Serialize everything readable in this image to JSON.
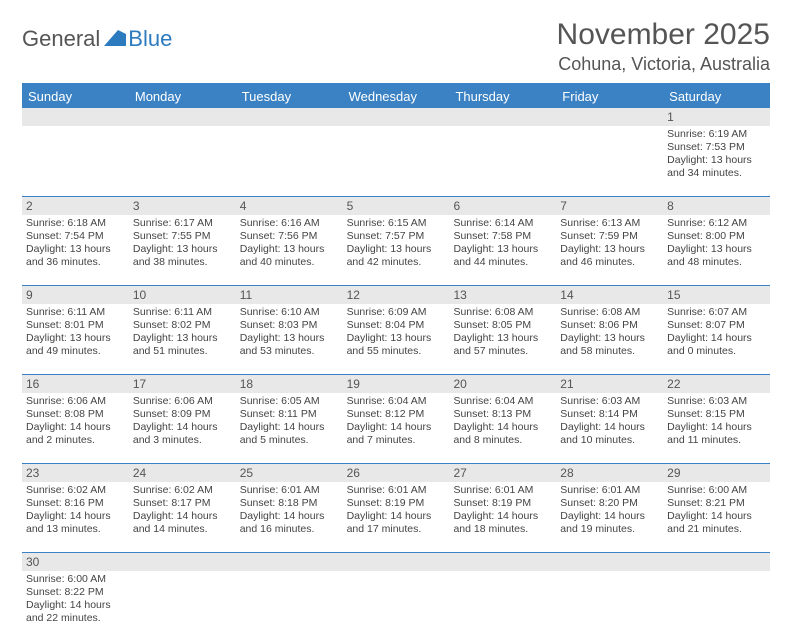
{
  "logo": {
    "text1": "General",
    "text2": "Blue"
  },
  "title": "November 2025",
  "location": "Cohuna, Victoria, Australia",
  "colors": {
    "header_bg": "#3a82c4",
    "daynum_bg": "#e8e8e8",
    "text": "#444444"
  },
  "dayNames": [
    "Sunday",
    "Monday",
    "Tuesday",
    "Wednesday",
    "Thursday",
    "Friday",
    "Saturday"
  ],
  "weeks": [
    [
      null,
      null,
      null,
      null,
      null,
      null,
      {
        "n": "1",
        "sr": "Sunrise: 6:19 AM",
        "ss": "Sunset: 7:53 PM",
        "dl": "Daylight: 13 hours and 34 minutes."
      }
    ],
    [
      {
        "n": "2",
        "sr": "Sunrise: 6:18 AM",
        "ss": "Sunset: 7:54 PM",
        "dl": "Daylight: 13 hours and 36 minutes."
      },
      {
        "n": "3",
        "sr": "Sunrise: 6:17 AM",
        "ss": "Sunset: 7:55 PM",
        "dl": "Daylight: 13 hours and 38 minutes."
      },
      {
        "n": "4",
        "sr": "Sunrise: 6:16 AM",
        "ss": "Sunset: 7:56 PM",
        "dl": "Daylight: 13 hours and 40 minutes."
      },
      {
        "n": "5",
        "sr": "Sunrise: 6:15 AM",
        "ss": "Sunset: 7:57 PM",
        "dl": "Daylight: 13 hours and 42 minutes."
      },
      {
        "n": "6",
        "sr": "Sunrise: 6:14 AM",
        "ss": "Sunset: 7:58 PM",
        "dl": "Daylight: 13 hours and 44 minutes."
      },
      {
        "n": "7",
        "sr": "Sunrise: 6:13 AM",
        "ss": "Sunset: 7:59 PM",
        "dl": "Daylight: 13 hours and 46 minutes."
      },
      {
        "n": "8",
        "sr": "Sunrise: 6:12 AM",
        "ss": "Sunset: 8:00 PM",
        "dl": "Daylight: 13 hours and 48 minutes."
      }
    ],
    [
      {
        "n": "9",
        "sr": "Sunrise: 6:11 AM",
        "ss": "Sunset: 8:01 PM",
        "dl": "Daylight: 13 hours and 49 minutes."
      },
      {
        "n": "10",
        "sr": "Sunrise: 6:11 AM",
        "ss": "Sunset: 8:02 PM",
        "dl": "Daylight: 13 hours and 51 minutes."
      },
      {
        "n": "11",
        "sr": "Sunrise: 6:10 AM",
        "ss": "Sunset: 8:03 PM",
        "dl": "Daylight: 13 hours and 53 minutes."
      },
      {
        "n": "12",
        "sr": "Sunrise: 6:09 AM",
        "ss": "Sunset: 8:04 PM",
        "dl": "Daylight: 13 hours and 55 minutes."
      },
      {
        "n": "13",
        "sr": "Sunrise: 6:08 AM",
        "ss": "Sunset: 8:05 PM",
        "dl": "Daylight: 13 hours and 57 minutes."
      },
      {
        "n": "14",
        "sr": "Sunrise: 6:08 AM",
        "ss": "Sunset: 8:06 PM",
        "dl": "Daylight: 13 hours and 58 minutes."
      },
      {
        "n": "15",
        "sr": "Sunrise: 6:07 AM",
        "ss": "Sunset: 8:07 PM",
        "dl": "Daylight: 14 hours and 0 minutes."
      }
    ],
    [
      {
        "n": "16",
        "sr": "Sunrise: 6:06 AM",
        "ss": "Sunset: 8:08 PM",
        "dl": "Daylight: 14 hours and 2 minutes."
      },
      {
        "n": "17",
        "sr": "Sunrise: 6:06 AM",
        "ss": "Sunset: 8:09 PM",
        "dl": "Daylight: 14 hours and 3 minutes."
      },
      {
        "n": "18",
        "sr": "Sunrise: 6:05 AM",
        "ss": "Sunset: 8:11 PM",
        "dl": "Daylight: 14 hours and 5 minutes."
      },
      {
        "n": "19",
        "sr": "Sunrise: 6:04 AM",
        "ss": "Sunset: 8:12 PM",
        "dl": "Daylight: 14 hours and 7 minutes."
      },
      {
        "n": "20",
        "sr": "Sunrise: 6:04 AM",
        "ss": "Sunset: 8:13 PM",
        "dl": "Daylight: 14 hours and 8 minutes."
      },
      {
        "n": "21",
        "sr": "Sunrise: 6:03 AM",
        "ss": "Sunset: 8:14 PM",
        "dl": "Daylight: 14 hours and 10 minutes."
      },
      {
        "n": "22",
        "sr": "Sunrise: 6:03 AM",
        "ss": "Sunset: 8:15 PM",
        "dl": "Daylight: 14 hours and 11 minutes."
      }
    ],
    [
      {
        "n": "23",
        "sr": "Sunrise: 6:02 AM",
        "ss": "Sunset: 8:16 PM",
        "dl": "Daylight: 14 hours and 13 minutes."
      },
      {
        "n": "24",
        "sr": "Sunrise: 6:02 AM",
        "ss": "Sunset: 8:17 PM",
        "dl": "Daylight: 14 hours and 14 minutes."
      },
      {
        "n": "25",
        "sr": "Sunrise: 6:01 AM",
        "ss": "Sunset: 8:18 PM",
        "dl": "Daylight: 14 hours and 16 minutes."
      },
      {
        "n": "26",
        "sr": "Sunrise: 6:01 AM",
        "ss": "Sunset: 8:19 PM",
        "dl": "Daylight: 14 hours and 17 minutes."
      },
      {
        "n": "27",
        "sr": "Sunrise: 6:01 AM",
        "ss": "Sunset: 8:19 PM",
        "dl": "Daylight: 14 hours and 18 minutes."
      },
      {
        "n": "28",
        "sr": "Sunrise: 6:01 AM",
        "ss": "Sunset: 8:20 PM",
        "dl": "Daylight: 14 hours and 19 minutes."
      },
      {
        "n": "29",
        "sr": "Sunrise: 6:00 AM",
        "ss": "Sunset: 8:21 PM",
        "dl": "Daylight: 14 hours and 21 minutes."
      }
    ],
    [
      {
        "n": "30",
        "sr": "Sunrise: 6:00 AM",
        "ss": "Sunset: 8:22 PM",
        "dl": "Daylight: 14 hours and 22 minutes."
      },
      null,
      null,
      null,
      null,
      null,
      null
    ]
  ]
}
